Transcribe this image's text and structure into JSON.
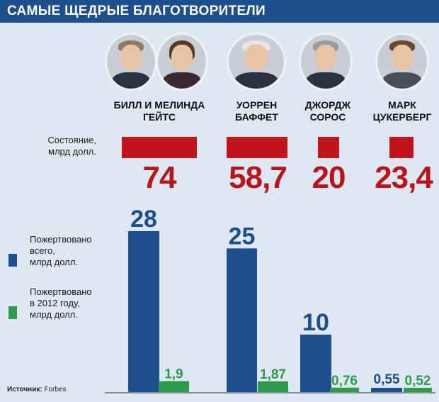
{
  "header": {
    "title": "САМЫЕ ЩЕДРЫЕ БЛАГОТВОРИТЕЛИ"
  },
  "people": [
    {
      "name": "БИЛЛ И МЕЛИНДА\nГЕЙТС"
    },
    {
      "name": "УОРРЕН\nБАФФЕТ"
    },
    {
      "name": "ДЖОРДЖ\nСОРОС"
    },
    {
      "name": "МАРК\nЦУКЕРБЕРГ"
    }
  ],
  "labels": {
    "wealth": "Состояние,\nмлрд долл.",
    "total": "Пожертвовано\nвсего,\nмлрд долл.",
    "y2012": "Пожертвовано\nв 2012 году,\nмлрд долл."
  },
  "source": {
    "prefix": "Источник:",
    "name": "Forbes"
  },
  "colors": {
    "header": "#1d4f8c",
    "blue": "#1d4f8c",
    "green": "#2e9b4a",
    "red": "#c0141c",
    "background": "#dfe8f2"
  },
  "chart_data": {
    "type": "bar",
    "categories": [
      "БИЛЛ И МЕЛИНДА ГЕЙТС",
      "УОРРЕН БАФФЕТ",
      "ДЖОРДЖ СОРОС",
      "МАРК ЦУКЕРБЕРГ"
    ],
    "wealth": {
      "values": [
        74,
        58.7,
        20,
        23.4
      ],
      "labels": [
        "74",
        "58,7",
        "20",
        "23,4"
      ]
    },
    "series": [
      {
        "name": "Пожертвовано всего, млрд долл.",
        "values": [
          28,
          25,
          10,
          0.55
        ],
        "labels": [
          "28",
          "25",
          "10",
          "0,55"
        ],
        "color": "#1d4f8c"
      },
      {
        "name": "Пожертвовано в 2012 году, млрд долл.",
        "values": [
          1.9,
          1.87,
          0.76,
          0.52
        ],
        "labels": [
          "1,9",
          "1,87",
          "0,76",
          "0,52"
        ],
        "color": "#2e9b4a"
      }
    ],
    "ylim": [
      0,
      28
    ]
  }
}
